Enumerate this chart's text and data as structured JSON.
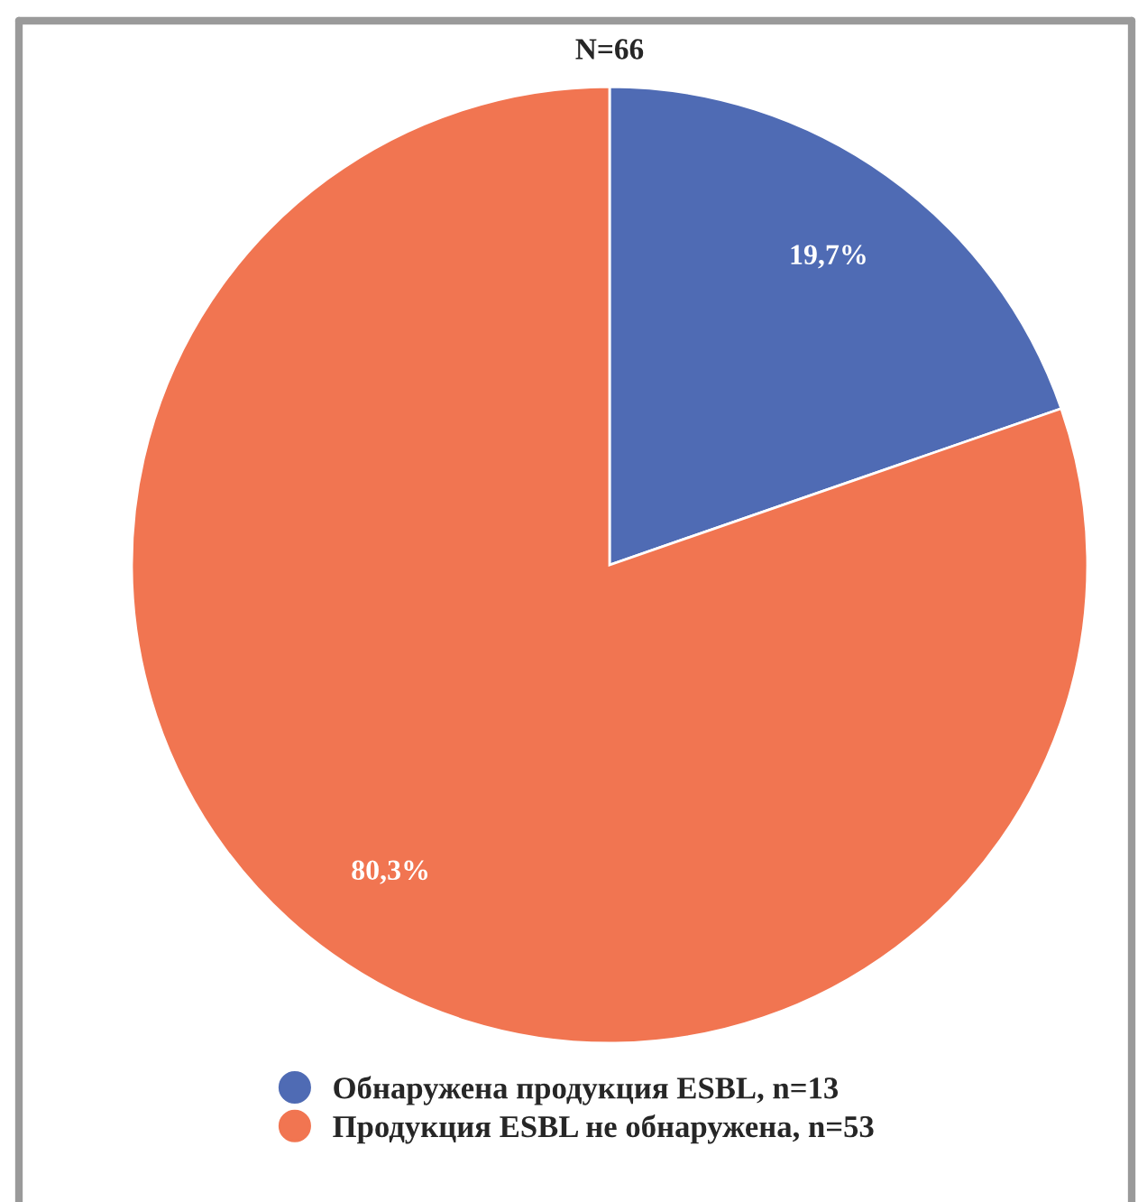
{
  "chart_data": {
    "type": "pie",
    "title": "N=66",
    "categories": [
      "Обнаружена продукция ESBL, n=13",
      "Продукция ESBL не обнаружена, n=53"
    ],
    "values": [
      19.7,
      80.3
    ],
    "colors": [
      "#4f6bb4",
      "#f17551"
    ],
    "value_labels": [
      "19,7%",
      "80,3%"
    ],
    "legend": "bottom"
  }
}
